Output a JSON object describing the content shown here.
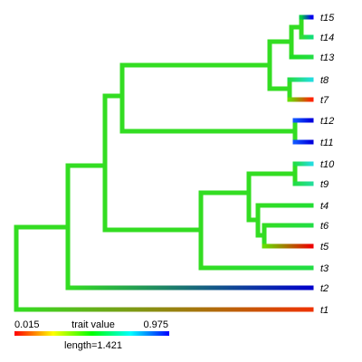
{
  "tree": {
    "tips": [
      {
        "label": "t15",
        "color_start": "#00cc44",
        "color_end": "#0000ee"
      },
      {
        "label": "t14",
        "color_start": "#33dd33",
        "color_end": "#11dd77"
      },
      {
        "label": "t13",
        "color_start": "#22dd22",
        "color_end": "#22dd44"
      },
      {
        "label": "t8",
        "color_start": "#22dd44",
        "color_end": "#22dddd"
      },
      {
        "label": "t7",
        "color_start": "#66dd00",
        "color_end": "#ff2200"
      },
      {
        "label": "t12",
        "color_start": "#1155ff",
        "color_end": "#0000dd"
      },
      {
        "label": "t11",
        "color_start": "#1155ff",
        "color_end": "#0000dd"
      },
      {
        "label": "t10",
        "color_start": "#22dd44",
        "color_end": "#22dddd"
      },
      {
        "label": "t9",
        "color_start": "#22dd44",
        "color_end": "#22dd99"
      },
      {
        "label": "t4",
        "color_start": "#33dd22",
        "color_end": "#22dd33"
      },
      {
        "label": "t6",
        "color_start": "#33dd22",
        "color_end": "#22dd44"
      },
      {
        "label": "t5",
        "color_start": "#66dd00",
        "color_end": "#ee0000"
      },
      {
        "label": "t3",
        "color_start": "#33dd22",
        "color_end": "#22dd44"
      },
      {
        "label": "t2",
        "color_start": "#33dd22",
        "color_end": "#0000cc"
      },
      {
        "label": "t1",
        "color_start": "#33dd22",
        "color_end": "#ee3300"
      }
    ]
  },
  "legend": {
    "min_label": "0.015",
    "title": "trait value",
    "max_label": "0.975",
    "length_label": "length=1.421"
  }
}
